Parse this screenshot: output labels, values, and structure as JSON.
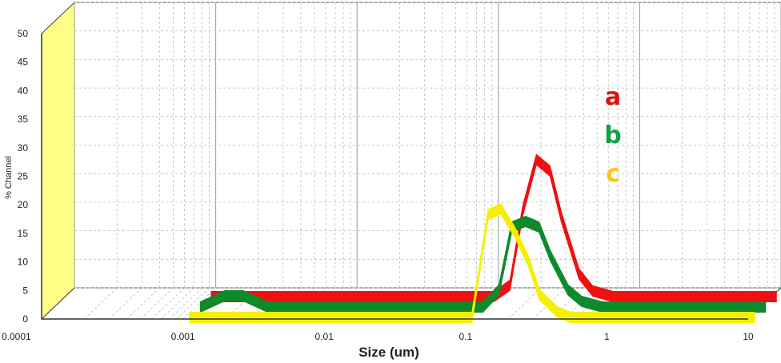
{
  "chart_data": {
    "type": "area",
    "xlabel": "Size (um)",
    "ylabel": "% Channel",
    "xscale": "log",
    "xlim": [
      0.0001,
      10
    ],
    "ylim": [
      0,
      50
    ],
    "xticks": [
      "0.0001",
      "0.001",
      "0.01",
      "0.1",
      "1",
      "10"
    ],
    "yticks": [
      "0",
      "5",
      "10",
      "15",
      "20",
      "25",
      "30",
      "35",
      "40",
      "45",
      "50"
    ],
    "grid": true,
    "style": "3d",
    "legend_position": "right",
    "series": [
      {
        "name": "a",
        "color": "#ee1111",
        "x": [
          0.001,
          0.0015,
          0.002,
          0.003,
          0.01,
          0.05,
          0.1,
          0.13,
          0.16,
          0.2,
          0.25,
          0.3,
          0.4,
          0.5,
          0.7,
          1,
          2,
          5,
          10
        ],
        "values": [
          0,
          0,
          0,
          0,
          0,
          0,
          0,
          2,
          15,
          24,
          22,
          14,
          4,
          1,
          0,
          0,
          0,
          0,
          0
        ]
      },
      {
        "name": "b",
        "color": "#0e8a2a",
        "x": [
          0.001,
          0.0015,
          0.002,
          0.003,
          0.01,
          0.05,
          0.1,
          0.13,
          0.16,
          0.2,
          0.25,
          0.3,
          0.4,
          0.5,
          0.7,
          1,
          2,
          5,
          10
        ],
        "values": [
          0,
          2,
          2,
          0,
          0,
          0,
          0,
          3,
          14,
          15,
          14,
          9,
          3,
          1,
          0,
          0,
          0,
          0,
          0
        ]
      },
      {
        "name": "c",
        "color": "#f6f000",
        "x": [
          0.001,
          0.0015,
          0.002,
          0.003,
          0.01,
          0.05,
          0.1,
          0.13,
          0.16,
          0.2,
          0.25,
          0.3,
          0.4,
          0.5,
          0.7,
          1,
          2,
          5,
          10
        ],
        "values": [
          0,
          0,
          0,
          0,
          0,
          0,
          0,
          18,
          19,
          15,
          10,
          4,
          1,
          0,
          0,
          0,
          0,
          0,
          0
        ]
      }
    ]
  },
  "legend_colors": {
    "a": "#dd1111",
    "b": "#12a04a",
    "c": "#f8c81a"
  }
}
